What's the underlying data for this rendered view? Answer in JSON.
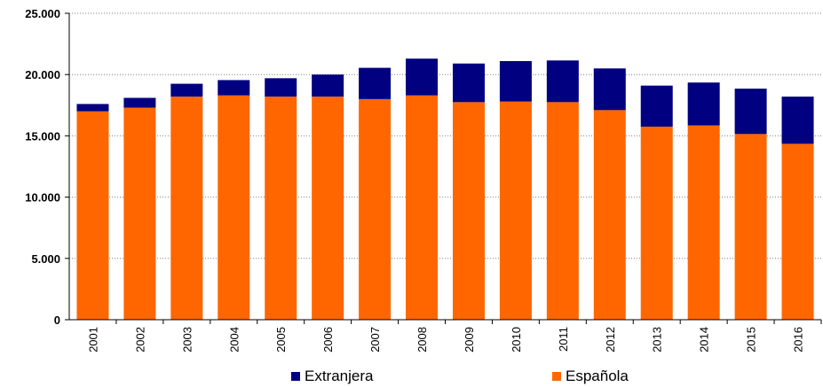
{
  "chart_data": {
    "type": "bar",
    "stacked": true,
    "title": "",
    "xlabel": "",
    "ylabel": "",
    "categories": [
      "2001",
      "2002",
      "2003",
      "2004",
      "2005",
      "2006",
      "2007",
      "2008",
      "2009",
      "2010",
      "2011",
      "2012",
      "2013",
      "2014",
      "2015",
      "2016"
    ],
    "series": [
      {
        "name": "Española",
        "color": "#ff6600",
        "values": [
          17000,
          17300,
          18200,
          18300,
          18200,
          18200,
          18000,
          18300,
          17750,
          17800,
          17750,
          17100,
          15750,
          15850,
          15150,
          14350
        ]
      },
      {
        "name": "Extranjera",
        "color": "#000080",
        "values": [
          600,
          800,
          1050,
          1250,
          1500,
          1800,
          2550,
          3000,
          3150,
          3300,
          3400,
          3400,
          3350,
          3500,
          3700,
          3850
        ]
      }
    ],
    "ylim": [
      0,
      25000
    ],
    "yticks": [
      0,
      5000,
      10000,
      15000,
      20000,
      25000
    ],
    "ytick_labels": [
      "0",
      "5.000",
      "10.000",
      "15.000",
      "20.000",
      "25.000"
    ],
    "grid": "horizontal dashed",
    "legend_position": "bottom"
  }
}
